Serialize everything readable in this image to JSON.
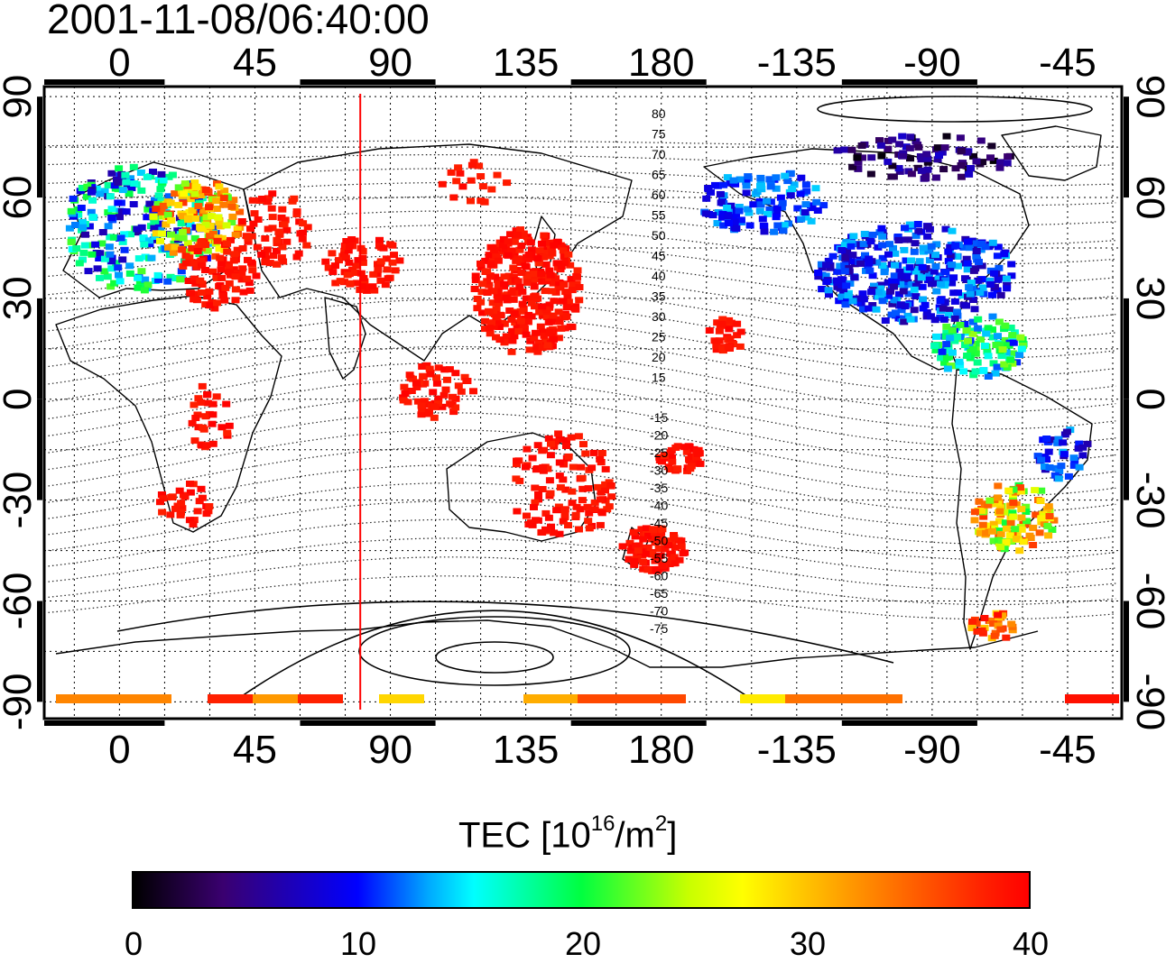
{
  "title": "2001-11-08/06:40:00",
  "map": {
    "lon_labels": [
      "0",
      "45",
      "90",
      "135",
      "180",
      "-135",
      "-90",
      "-45"
    ],
    "lon_values": [
      0,
      45,
      90,
      135,
      180,
      225,
      270,
      315
    ],
    "lat_labels": [
      "90",
      "60",
      "30",
      "0",
      "-30",
      "-60",
      "-90"
    ],
    "lat_values": [
      90,
      60,
      30,
      0,
      -30,
      -60,
      -90
    ],
    "lon_range": [
      -25,
      333
    ],
    "lat_range": [
      -95,
      93
    ],
    "contour_labels_north": [
      "80",
      "75",
      "70",
      "65",
      "60",
      "55",
      "50",
      "45",
      "40",
      "35",
      "30",
      "25",
      "20",
      "15"
    ],
    "contour_labels_south": [
      "-15",
      "-20",
      "-25",
      "-30",
      "-35",
      "-40",
      "-45",
      "-50",
      "-55",
      "-60",
      "-65",
      "-70",
      "-75"
    ],
    "marker_longitude": 80
  },
  "colorbar": {
    "title_prefix": "TEC  [10",
    "title_exp1": "16",
    "title_mid": "/m",
    "title_exp2": "2",
    "title_suffix": "]",
    "ticks": [
      "0",
      "10",
      "20",
      "30",
      "40"
    ],
    "min": 0,
    "max": 40
  }
}
